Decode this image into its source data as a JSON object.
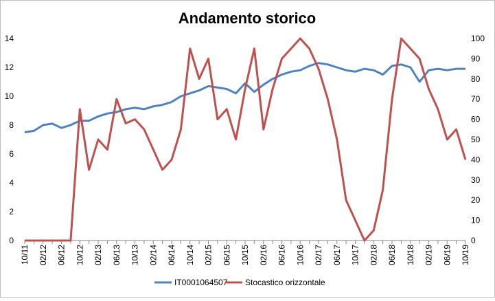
{
  "chart_data": {
    "type": "line",
    "title": "Andamento storico",
    "categories": [
      "10/11",
      null,
      "02/12",
      null,
      "06/12",
      null,
      "10/12",
      null,
      "02/13",
      null,
      "06/13",
      null,
      "10/13",
      null,
      "02/14",
      null,
      "06/14",
      null,
      "10/14",
      null,
      "02/15",
      null,
      "06/15",
      null,
      "10/15",
      null,
      "02/16",
      null,
      "06/16",
      null,
      "10/16",
      null,
      "02/17",
      null,
      "06/17",
      null,
      "10/17",
      null,
      "02/18",
      null,
      "06/18",
      null,
      "10/18",
      null,
      "02/19",
      null,
      "06/19",
      null,
      "10/19"
    ],
    "series": [
      {
        "name": "IT0001064507",
        "color": "#4f81bd",
        "values": [
          7.5,
          7.6,
          8.0,
          8.1,
          7.8,
          8.0,
          8.3,
          8.3,
          8.6,
          8.8,
          8.9,
          9.1,
          9.2,
          9.1,
          9.3,
          9.4,
          9.6,
          10.0,
          10.2,
          10.4,
          10.7,
          10.6,
          10.5,
          10.2,
          10.9,
          10.3,
          10.8,
          11.2,
          11.5,
          11.7,
          11.8,
          12.1,
          12.3,
          12.2,
          12.0,
          11.8,
          11.7,
          11.9,
          11.8,
          11.5,
          12.1,
          12.2,
          12.0,
          11.0,
          11.8,
          11.9,
          11.8,
          11.9,
          11.9
        ]
      },
      {
        "name": "Stocastico orizzontale",
        "color": "#c0504d",
        "axis": "y2",
        "values": [
          0,
          0,
          0,
          0,
          0,
          0,
          65,
          35,
          50,
          45,
          70,
          58,
          60,
          55,
          45,
          35,
          40,
          55,
          95,
          80,
          90,
          60,
          65,
          50,
          75,
          95,
          55,
          75,
          90,
          95,
          100,
          95,
          85,
          70,
          50,
          20,
          10,
          0,
          5,
          25,
          70,
          100,
          95,
          90,
          75,
          65,
          50,
          55,
          40
        ]
      }
    ],
    "ylim": [
      0,
      14
    ],
    "yticks": [
      0,
      2,
      4,
      6,
      8,
      10,
      12,
      14
    ],
    "y2lim": [
      0,
      100
    ],
    "y2ticks": [
      0,
      10,
      20,
      30,
      40,
      50,
      60,
      70,
      80,
      90,
      100
    ],
    "grid": false,
    "legend": "bottom"
  }
}
